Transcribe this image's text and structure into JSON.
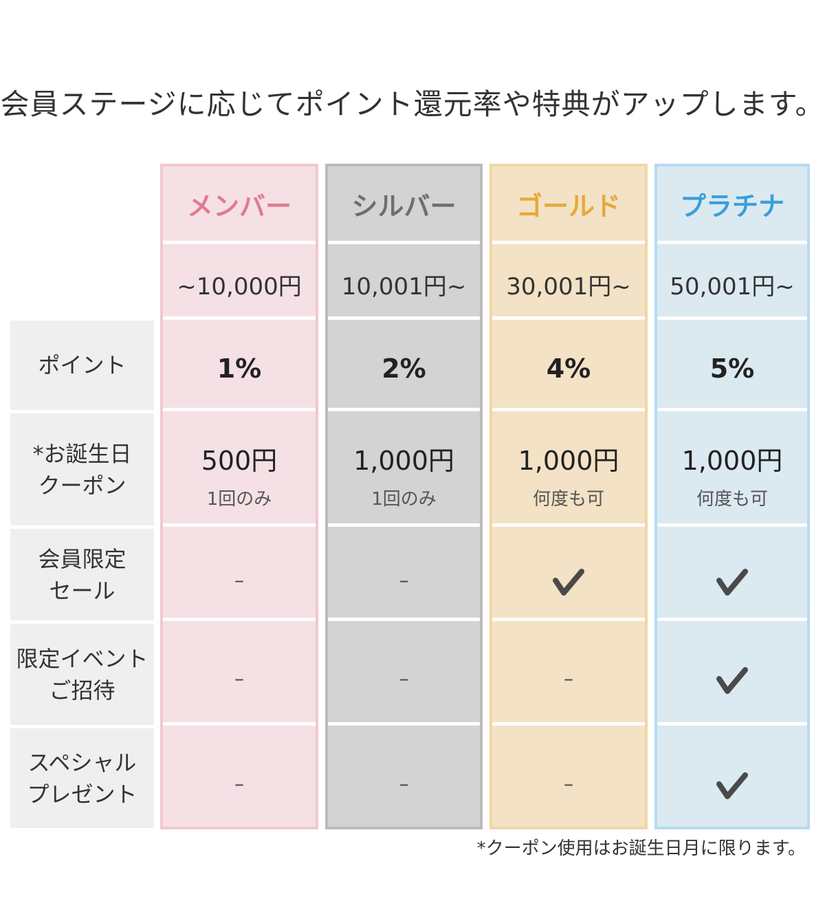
{
  "headline": "会員ステージに応じてポイント還元率や特典がアップします。",
  "row_labels": [
    "ポイント",
    "*お誕生日\nクーポン",
    "会員限定\nセール",
    "限定イベント\nご招待",
    "スペシャル\nプレゼント"
  ],
  "tiers": [
    {
      "name": "メンバー",
      "range": "~10,000円",
      "point_rate": "1%",
      "coupon_amount": "500円",
      "coupon_note": "1回のみ",
      "member_sale": "–",
      "event_invite": "–",
      "special_present": "–",
      "name_color": "#e27a8f",
      "bg_color": "#f5e1e5",
      "border_color": "#f0c8d0"
    },
    {
      "name": "シルバー",
      "range": "10,001円~",
      "point_rate": "2%",
      "coupon_amount": "1,000円",
      "coupon_note": "1回のみ",
      "member_sale": "–",
      "event_invite": "–",
      "special_present": "–",
      "name_color": "#6e6e6e",
      "bg_color": "#d4d3d4",
      "border_color": "#bcbbbc"
    },
    {
      "name": "ゴールド",
      "range": "30,001円~",
      "point_rate": "4%",
      "coupon_amount": "1,000円",
      "coupon_note": "何度も可",
      "member_sale": "check",
      "event_invite": "–",
      "special_present": "–",
      "name_color": "#e5a93a",
      "bg_color": "#f3e2c5",
      "border_color": "#f1d6a6"
    },
    {
      "name": "プラチナ",
      "range": "50,001円~",
      "point_rate": "5%",
      "coupon_amount": "1,000円",
      "coupon_note": "何度も可",
      "member_sale": "check",
      "event_invite": "check",
      "special_present": "check",
      "name_color": "#3a9fd8",
      "bg_color": "#dbe9f1",
      "border_color": "#b6dbf0"
    }
  ],
  "footnote": "*クーポン使用はお誕生日月に限ります。",
  "check_color": "#4a4a4a"
}
